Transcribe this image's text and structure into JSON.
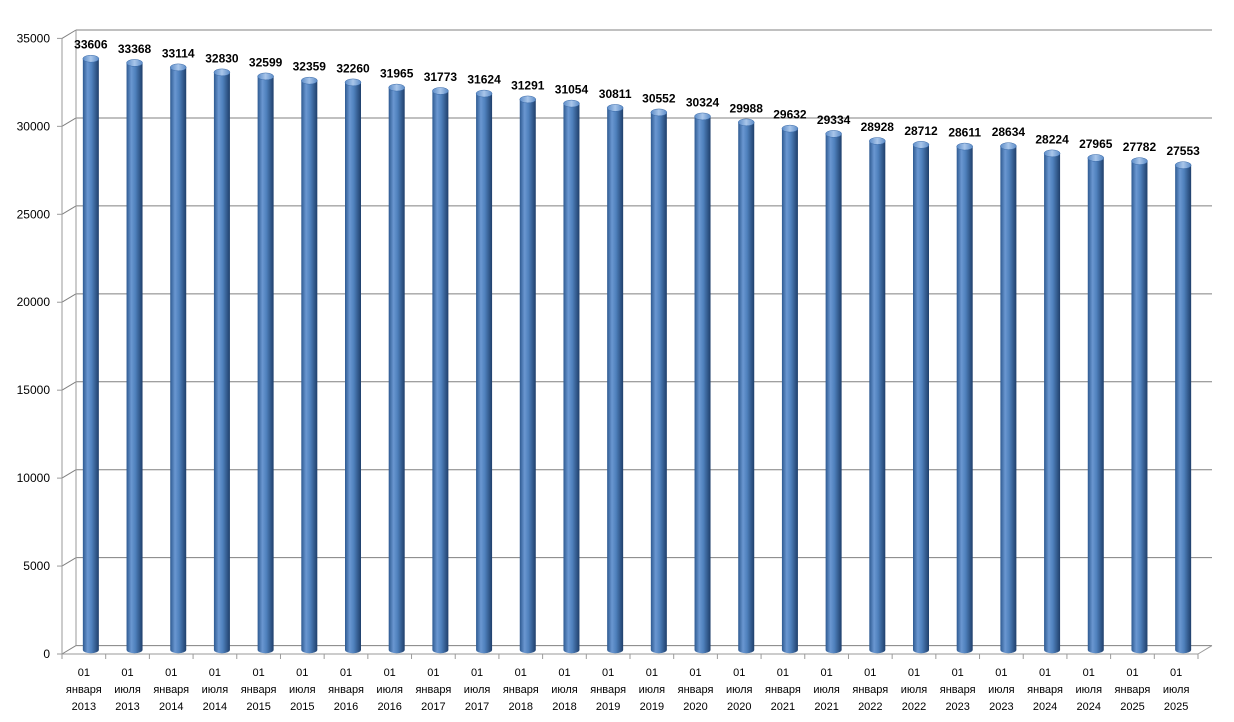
{
  "chart_data": {
    "type": "bar",
    "title": "",
    "xlabel": "",
    "ylabel": "",
    "ylim": [
      0,
      35000
    ],
    "yticks": [
      0,
      5000,
      10000,
      15000,
      20000,
      25000,
      30000,
      35000
    ],
    "grid": true,
    "legend": "none",
    "colors": {
      "bar": "#4F81BD",
      "bar_dark": "#2E5A91",
      "bar_light": "#8DB3E2",
      "grid": "#808080",
      "wall": "#9A9A9A"
    },
    "categories": [
      [
        "01",
        "января",
        "2013"
      ],
      [
        "01",
        "июля",
        "2013"
      ],
      [
        "01",
        "января",
        "2014"
      ],
      [
        "01",
        "июля",
        "2014"
      ],
      [
        "01",
        "января",
        "2015"
      ],
      [
        "01",
        "июля",
        "2015"
      ],
      [
        "01",
        "января",
        "2016"
      ],
      [
        "01",
        "июля",
        "2016"
      ],
      [
        "01",
        "января",
        "2017"
      ],
      [
        "01",
        "июля",
        "2017"
      ],
      [
        "01",
        "января",
        "2018"
      ],
      [
        "01",
        "июля",
        "2018"
      ],
      [
        "01",
        "января",
        "2019"
      ],
      [
        "01",
        "июля",
        "2019"
      ],
      [
        "01",
        "января",
        "2020"
      ],
      [
        "01",
        "июля",
        "2020"
      ],
      [
        "01",
        "января",
        "2021"
      ],
      [
        "01",
        "июля",
        "2021"
      ],
      [
        "01",
        "января",
        "2022"
      ],
      [
        "01",
        "июля",
        "2022"
      ],
      [
        "01",
        "января",
        "2023"
      ],
      [
        "01",
        "июля",
        "2023"
      ],
      [
        "01",
        "января",
        "2024"
      ],
      [
        "01",
        "июля",
        "2024"
      ],
      [
        "01",
        "января",
        "2025"
      ],
      [
        "01",
        "июля",
        "2025"
      ]
    ],
    "values": [
      33606,
      33368,
      33114,
      32830,
      32599,
      32359,
      32260,
      31965,
      31773,
      31624,
      31291,
      31054,
      30811,
      30552,
      30324,
      29988,
      29632,
      29334,
      28928,
      28712,
      28611,
      28634,
      28224,
      27965,
      27782,
      27553
    ]
  }
}
